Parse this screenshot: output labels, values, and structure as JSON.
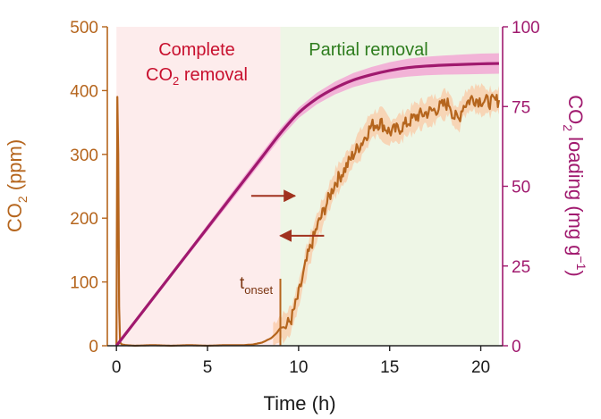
{
  "chart_data": {
    "type": "line",
    "x_axis": {
      "label": "Time (h)",
      "ticks": [
        0,
        5,
        10,
        15,
        20
      ],
      "range": [
        -0.5,
        21.2
      ]
    },
    "y_left": {
      "label_main": "CO",
      "label_sub": "2",
      "label_unit": " (ppm)",
      "ticks": [
        0,
        100,
        200,
        300,
        400,
        500
      ],
      "range": [
        0,
        500
      ],
      "color": "#B5651D"
    },
    "y_right": {
      "label_main": "CO",
      "label_sub": "2",
      "label_mid": " loading (mg g",
      "label_sup": "−1",
      "label_end": ")",
      "ticks": [
        0,
        25,
        50,
        75,
        100
      ],
      "range": [
        0,
        100
      ],
      "color": "#A0196E"
    },
    "regions": [
      {
        "label_line1": "Complete",
        "label_line2_main": "CO",
        "label_line2_sub": "2",
        "label_line2_end": " removal",
        "x_start": 0,
        "x_end": 9,
        "fill": "#FDECEC",
        "text_color": "#C8102E"
      },
      {
        "label_line1": "Partial removal",
        "x_start": 9,
        "x_end": 21,
        "fill": "#EEF6E6",
        "text_color": "#2E7D1E"
      }
    ],
    "onset": {
      "label_main": "t",
      "label_sub": "onset",
      "x": 9,
      "spike_ppm": 105
    },
    "series": [
      {
        "axis": "left",
        "color": "#B5651D",
        "band_color": "#F9C9A6",
        "x": [
          0,
          0.05,
          0.1,
          0.15,
          0.2,
          0.3,
          0.5,
          1,
          2,
          3,
          4,
          5,
          6,
          7,
          7.5,
          8,
          8.5,
          8.8,
          9,
          9.3,
          9.6,
          10,
          10.5,
          11,
          11.5,
          12,
          12.5,
          13,
          13.5,
          14,
          14.5,
          15,
          15.5,
          16,
          16.5,
          17,
          17.5,
          18,
          18.3,
          18.5,
          18.8,
          19,
          19.5,
          20,
          20.5,
          21
        ],
        "y": [
          0,
          390,
          300,
          60,
          5,
          2,
          1,
          0,
          1,
          0,
          1,
          0,
          1,
          1,
          2,
          5,
          12,
          20,
          28,
          30,
          42,
          80,
          140,
          185,
          220,
          255,
          275,
          300,
          320,
          345,
          350,
          335,
          340,
          350,
          360,
          365,
          370,
          378,
          380,
          360,
          355,
          375,
          388,
          385,
          382,
          385
        ]
      },
      {
        "axis": "right",
        "color": "#A0196E",
        "band_color": "#F2A3D3",
        "x": [
          0,
          1,
          2,
          3,
          4,
          5,
          6,
          7,
          8,
          9,
          10,
          11,
          12,
          13,
          14,
          15,
          16,
          17,
          18,
          19,
          20,
          21
        ],
        "y": [
          0,
          7.4,
          14.8,
          22.2,
          29.6,
          37,
          44.4,
          51.8,
          59.2,
          66.6,
          73,
          77.5,
          80.8,
          83.3,
          85,
          86.3,
          87.2,
          87.7,
          88,
          88.2,
          88.4,
          88.5
        ],
        "band": [
          0,
          0.2,
          0.4,
          0.6,
          0.8,
          1,
          1.2,
          1.3,
          1.4,
          1.5,
          1.6,
          1.8,
          2,
          2.2,
          2.4,
          2.6,
          2.8,
          2.9,
          3,
          3.1,
          3.2,
          3.2
        ]
      }
    ],
    "arrows": [
      {
        "direction": "right",
        "x_from": 7.4,
        "x_to": 9.8,
        "y_right": 47
      },
      {
        "direction": "left",
        "x_from": 11.4,
        "x_to": 9,
        "y_right": 34.5
      }
    ]
  }
}
